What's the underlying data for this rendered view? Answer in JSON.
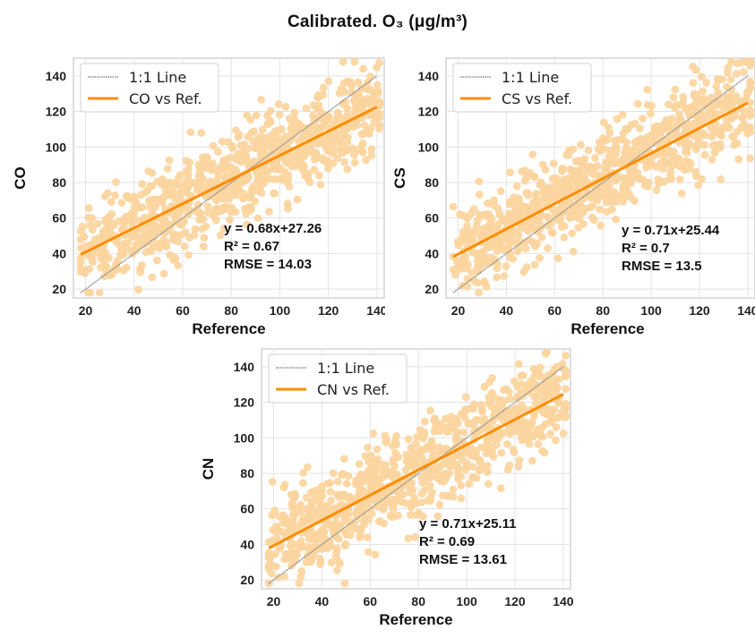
{
  "figure_title": "Calibrated. O₃ (μg/m³)",
  "colors": {
    "points": "#fbd59e",
    "fit": "#ff8c00",
    "identity": "#8c8c8c",
    "grid": "#e3e3e3",
    "frame": "#bdbdbd"
  },
  "chart_data": [
    {
      "type": "scatter",
      "ylabel": "CO",
      "xlabel": "Reference",
      "xlim": [
        15,
        143
      ],
      "ylim": [
        15,
        150
      ],
      "xticks": [
        20,
        40,
        60,
        80,
        100,
        120,
        140
      ],
      "yticks": [
        20,
        40,
        60,
        80,
        100,
        120,
        140
      ],
      "grid": true,
      "legend": {
        "placement": "top-left",
        "entries": [
          "1:1 Line",
          "CO vs Ref."
        ]
      },
      "fit": {
        "slope": 0.68,
        "intercept": 27.26,
        "x_range": [
          18,
          140
        ]
      },
      "identity": {
        "x_range": [
          18,
          140
        ]
      },
      "annotation": [
        "y = 0.68x+27.26",
        "R² = 0.67",
        "RMSE = 14.03"
      ]
    },
    {
      "type": "scatter",
      "ylabel": "CS",
      "xlabel": "Reference",
      "xlim": [
        15,
        143
      ],
      "ylim": [
        15,
        150
      ],
      "xticks": [
        20,
        40,
        60,
        80,
        100,
        120,
        140
      ],
      "yticks": [
        20,
        40,
        60,
        80,
        100,
        120,
        140
      ],
      "grid": true,
      "legend": {
        "placement": "top-left",
        "entries": [
          "1:1 Line",
          "CS vs Ref."
        ]
      },
      "fit": {
        "slope": 0.71,
        "intercept": 25.44,
        "x_range": [
          18,
          140
        ]
      },
      "identity": {
        "x_range": [
          18,
          140
        ]
      },
      "annotation": [
        "y = 0.71x+25.44",
        "R² = 0.7",
        "RMSE = 13.5"
      ]
    },
    {
      "type": "scatter",
      "ylabel": "CN",
      "xlabel": "Reference",
      "xlim": [
        15,
        143
      ],
      "ylim": [
        15,
        150
      ],
      "xticks": [
        20,
        40,
        60,
        80,
        100,
        120,
        140
      ],
      "yticks": [
        20,
        40,
        60,
        80,
        100,
        120,
        140
      ],
      "grid": true,
      "legend": {
        "placement": "top-left",
        "entries": [
          "1:1 Line",
          "CN vs Ref."
        ]
      },
      "fit": {
        "slope": 0.71,
        "intercept": 25.11,
        "x_range": [
          18,
          140
        ]
      },
      "identity": {
        "x_range": [
          18,
          140
        ]
      },
      "annotation": [
        "y = 0.71x+25.11",
        "R² = 0.69",
        "RMSE = 13.61"
      ]
    }
  ]
}
